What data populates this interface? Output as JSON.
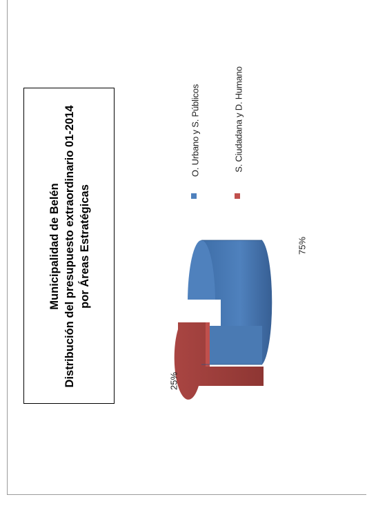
{
  "chart_data": {
    "type": "pie",
    "orientation": "rotated-90-ccw",
    "title_lines": [
      "Municipalidad de Belén",
      "Distribución del presupuesto extraordinario 01-2014",
      "por Áreas Estratégicas"
    ],
    "categories": [
      "O. Urbano y S. Públicos",
      "S. Ciudadana y D. Humano"
    ],
    "values": [
      75,
      25
    ],
    "data_labels": [
      "75%",
      "25%"
    ],
    "colors": [
      "#4f81bd",
      "#c0504d"
    ],
    "legend_position": "right"
  }
}
